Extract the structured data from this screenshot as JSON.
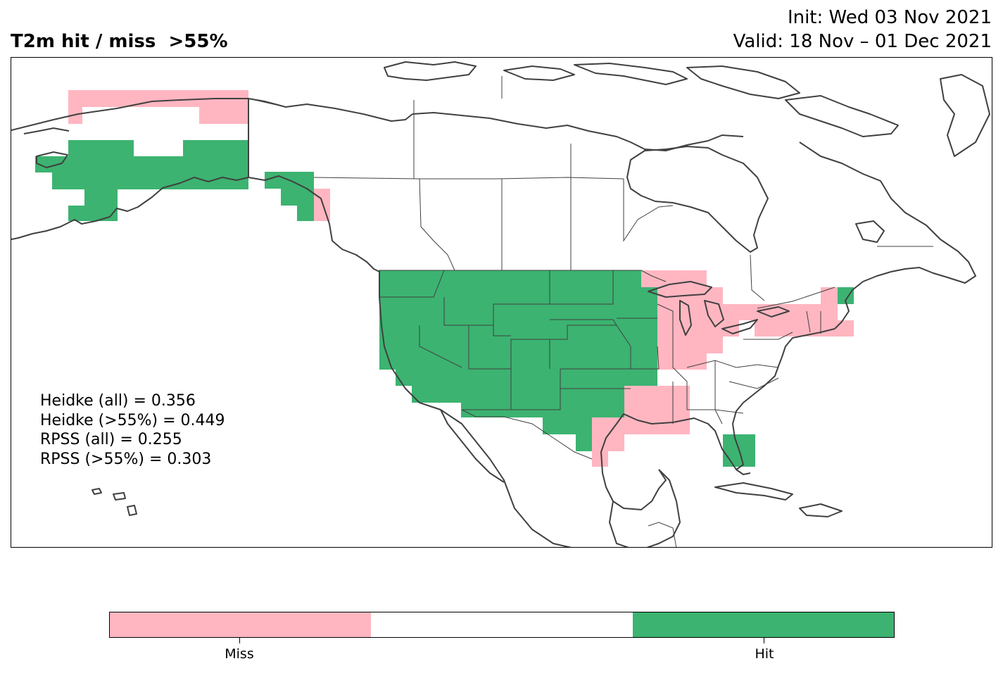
{
  "title": "T2m hit / miss  >55%",
  "init": "Init: Wed 03 Nov 2021",
  "valid": "Valid: 18 Nov – 01 Dec 2021",
  "colors": {
    "miss": "#ffb6c1",
    "neutral": "#ffffff",
    "hit": "#3cb371",
    "coast": "#404040"
  },
  "stats": [
    "Heidke (all) = 0.356",
    "Heidke (>55%) = 0.449",
    "RPSS (all) = 0.255",
    "RPSS (>55%) = 0.303"
  ],
  "colorbar": {
    "labels": [
      "Miss",
      "Hit"
    ]
  }
}
